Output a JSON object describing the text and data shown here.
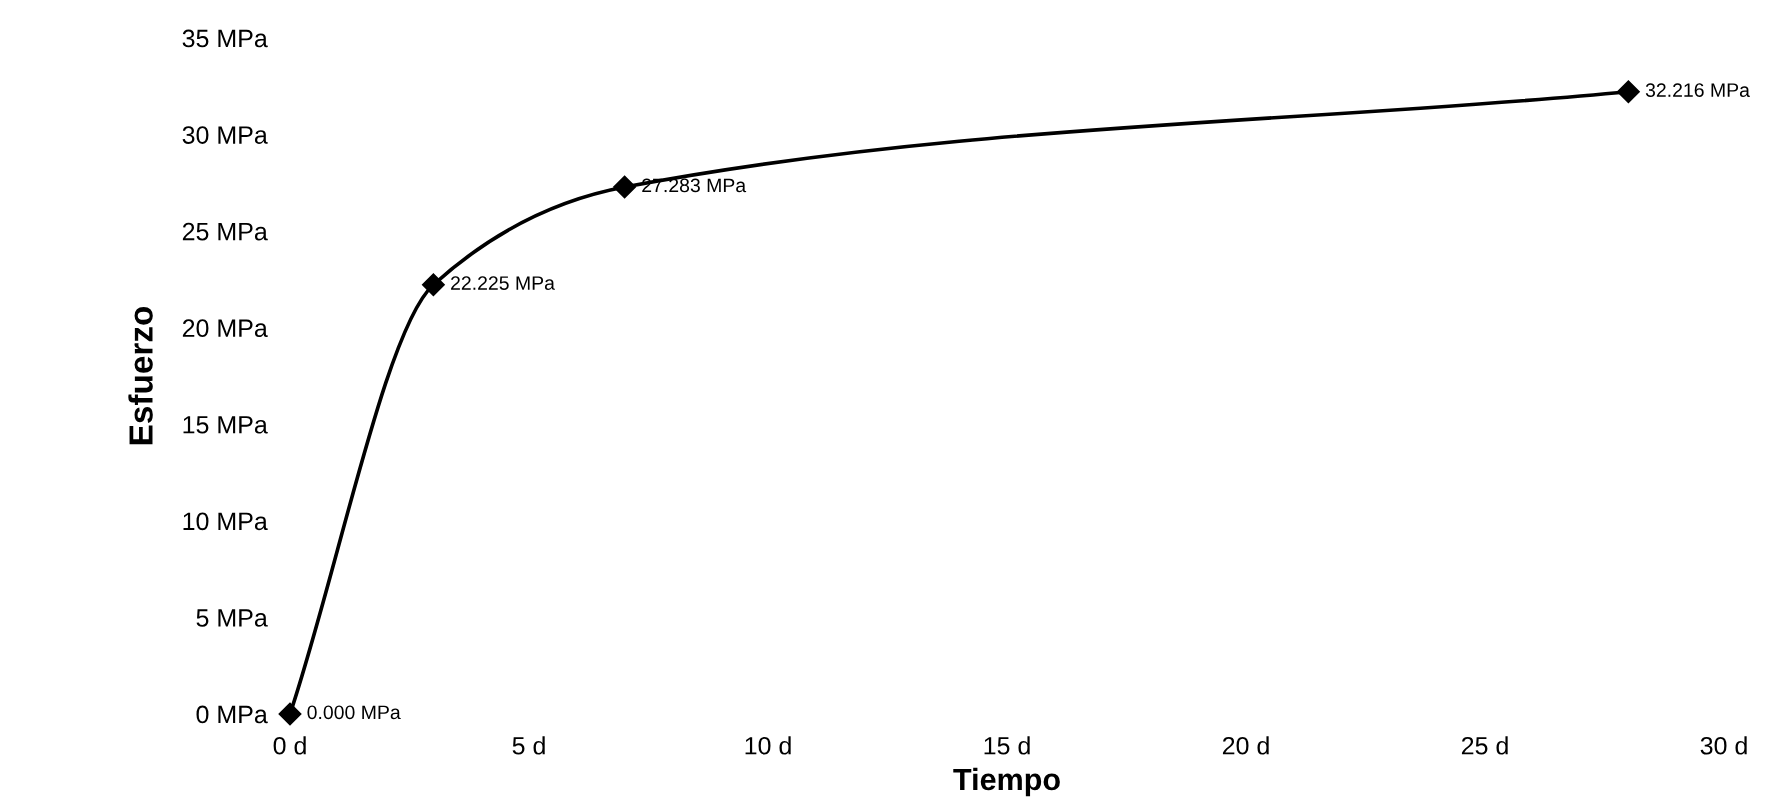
{
  "chart_data": {
    "type": "line",
    "xlabel": "Tiempo",
    "ylabel": "Esfuerzo",
    "x": [
      0,
      3,
      7,
      28
    ],
    "series": [
      {
        "color": "#000000",
        "values": [
          0,
          22.225,
          27.283,
          32.216
        ],
        "value_labels": [
          "0.000 MPa",
          "22.225 MPa",
          "27.283 MPa",
          "32.216 MPa"
        ]
      }
    ],
    "marker": "diamond",
    "line_style": "solid",
    "grid": false,
    "legend": false,
    "xlim": [
      0,
      30
    ],
    "ylim": [
      0,
      35
    ],
    "xticks": [
      {
        "value": 0,
        "label": "0 d"
      },
      {
        "value": 5,
        "label": "5 d"
      },
      {
        "value": 10,
        "label": "10 d"
      },
      {
        "value": 15,
        "label": "15 d"
      },
      {
        "value": 20,
        "label": "20 d"
      },
      {
        "value": 25,
        "label": "25 d"
      },
      {
        "value": 30,
        "label": "30 d"
      }
    ],
    "yticks": [
      {
        "value": 0,
        "label": "0 MPa"
      },
      {
        "value": 5,
        "label": "5 MPa"
      },
      {
        "value": 10,
        "label": "10 MPa"
      },
      {
        "value": 15,
        "label": "15 MPa"
      },
      {
        "value": 20,
        "label": "20 MPa"
      },
      {
        "value": 25,
        "label": "25 MPa"
      },
      {
        "value": 30,
        "label": "30 MPa"
      },
      {
        "value": 35,
        "label": "35 MPa"
      }
    ]
  }
}
